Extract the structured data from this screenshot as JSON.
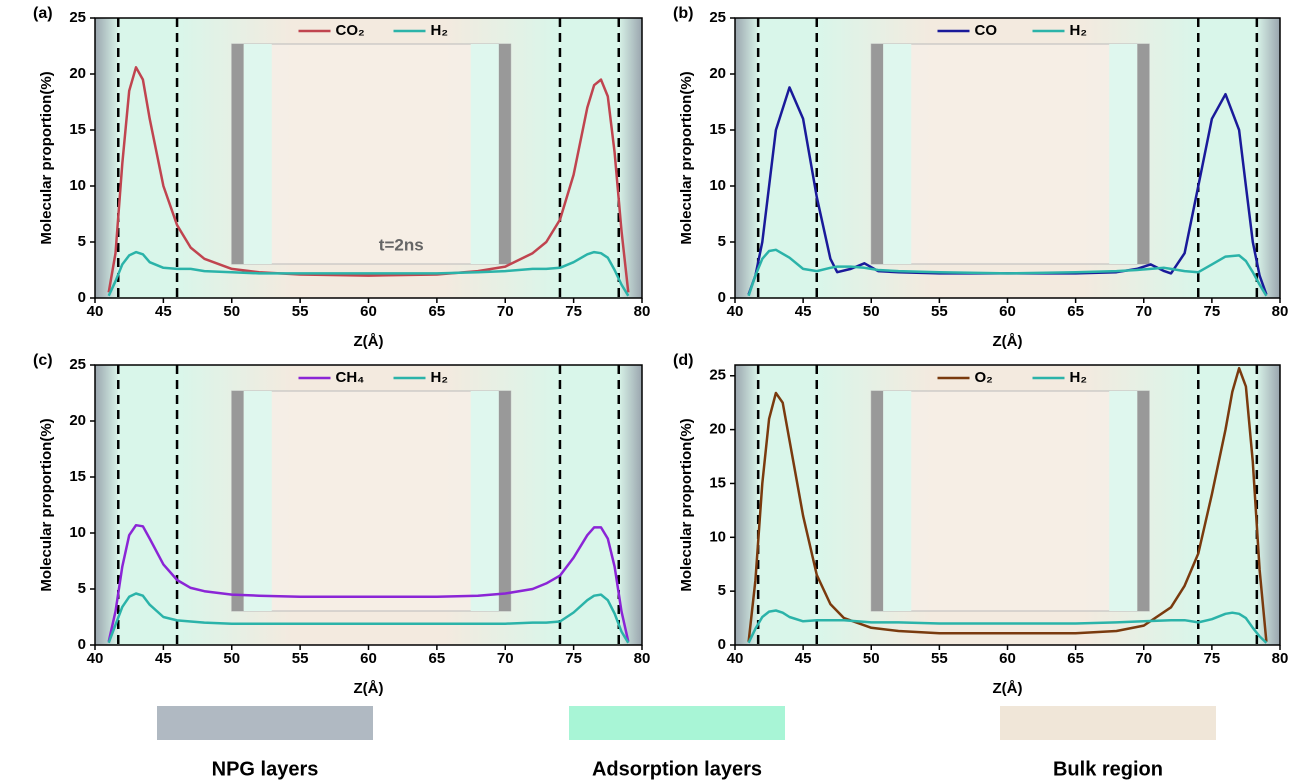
{
  "chart_data": [
    {
      "type": "line",
      "panel_label": "(a)",
      "x_label": "Z(Å)",
      "y_label": "Molecular proportion(%)",
      "annotation": "t=2ns",
      "x": [
        41,
        41.5,
        42,
        42.5,
        43,
        43.5,
        44,
        45,
        46,
        47,
        48,
        50,
        52,
        55,
        60,
        65,
        68,
        70,
        72,
        73,
        74,
        75,
        76,
        76.5,
        77,
        77.5,
        78,
        78.5,
        79
      ],
      "series": [
        {
          "name": "CO₂",
          "color": "#c0444f",
          "values": [
            0.5,
            4,
            12,
            18.5,
            20.6,
            19.5,
            16,
            10,
            6.5,
            4.5,
            3.5,
            2.6,
            2.3,
            2.1,
            2.0,
            2.1,
            2.4,
            2.8,
            4,
            5,
            7,
            11,
            17,
            19,
            19.5,
            18,
            13,
            6,
            0.5
          ]
        },
        {
          "name": "H₂",
          "color": "#2bb3a9",
          "values": [
            0.2,
            1.5,
            3,
            3.8,
            4.1,
            3.9,
            3.2,
            2.7,
            2.6,
            2.6,
            2.4,
            2.3,
            2.2,
            2.2,
            2.2,
            2.2,
            2.3,
            2.4,
            2.6,
            2.6,
            2.7,
            3.2,
            3.9,
            4.1,
            4.0,
            3.6,
            2.5,
            1.2,
            0.2
          ]
        }
      ],
      "boundaries": [
        41.7,
        46,
        74,
        78.3
      ],
      "xlim": [
        40,
        80
      ],
      "xticks": [
        40,
        45,
        50,
        55,
        60,
        65,
        70,
        75,
        80
      ],
      "ylim": [
        0,
        25
      ],
      "yticks": [
        0,
        5,
        10,
        15,
        20,
        25
      ]
    },
    {
      "type": "line",
      "panel_label": "(b)",
      "x_label": "Z(Å)",
      "y_label": "Molecular proportion(%)",
      "x": [
        41,
        41.5,
        42,
        42.5,
        43,
        44,
        45,
        46,
        47,
        47.5,
        48.5,
        49.5,
        50.5,
        52,
        55,
        60,
        65,
        68,
        69.5,
        70.5,
        71.5,
        72,
        73,
        74,
        75,
        76,
        77,
        77.5,
        78,
        78.5,
        79
      ],
      "series": [
        {
          "name": "CO",
          "color": "#1a1a9a",
          "values": [
            0.3,
            2,
            5,
            10,
            15,
            18.8,
            16,
            9,
            3.5,
            2.3,
            2.6,
            3.1,
            2.4,
            2.3,
            2.2,
            2.2,
            2.2,
            2.3,
            2.6,
            3.0,
            2.4,
            2.2,
            4,
            10,
            16,
            18.2,
            15,
            10,
            5,
            2,
            0.3
          ]
        },
        {
          "name": "H₂",
          "color": "#2bb3a9",
          "values": [
            0.2,
            2,
            3.5,
            4.2,
            4.3,
            3.6,
            2.6,
            2.4,
            2.7,
            2.8,
            2.8,
            2.7,
            2.5,
            2.4,
            2.3,
            2.2,
            2.3,
            2.4,
            2.5,
            2.6,
            2.7,
            2.6,
            2.4,
            2.3,
            3,
            3.7,
            3.8,
            3.3,
            2.3,
            1.2,
            0.2
          ]
        }
      ],
      "boundaries": [
        41.7,
        46,
        74,
        78.3
      ],
      "xlim": [
        40,
        80
      ],
      "xticks": [
        40,
        45,
        50,
        55,
        60,
        65,
        70,
        75,
        80
      ],
      "ylim": [
        0,
        25
      ],
      "yticks": [
        0,
        5,
        10,
        15,
        20,
        25
      ]
    },
    {
      "type": "line",
      "panel_label": "(c)",
      "x_label": "Z(Å)",
      "y_label": "Molecular proportion(%)",
      "x": [
        41,
        41.5,
        42,
        42.5,
        43,
        43.5,
        44,
        45,
        46,
        47,
        48,
        50,
        52,
        55,
        60,
        65,
        68,
        70,
        72,
        73,
        74,
        75,
        76,
        76.5,
        77,
        77.5,
        78,
        78.5,
        79
      ],
      "series": [
        {
          "name": "CH₄",
          "color": "#8b25d6",
          "values": [
            0.3,
            3,
            7,
            9.8,
            10.7,
            10.6,
            9.5,
            7.2,
            5.8,
            5.1,
            4.8,
            4.5,
            4.4,
            4.3,
            4.3,
            4.3,
            4.4,
            4.6,
            5.0,
            5.5,
            6.2,
            7.8,
            9.8,
            10.5,
            10.5,
            9.5,
            7,
            3,
            0.3
          ]
        },
        {
          "name": "H₂",
          "color": "#2bb3a9",
          "values": [
            0.2,
            1.8,
            3.4,
            4.3,
            4.6,
            4.4,
            3.6,
            2.5,
            2.2,
            2.1,
            2.0,
            1.9,
            1.9,
            1.9,
            1.9,
            1.9,
            1.9,
            1.9,
            2.0,
            2.0,
            2.1,
            2.9,
            4.0,
            4.4,
            4.5,
            4.0,
            2.8,
            1.2,
            0.2
          ]
        }
      ],
      "boundaries": [
        41.7,
        46,
        74,
        78.3
      ],
      "xlim": [
        40,
        80
      ],
      "xticks": [
        40,
        45,
        50,
        55,
        60,
        65,
        70,
        75,
        80
      ],
      "ylim": [
        0,
        25
      ],
      "yticks": [
        0,
        5,
        10,
        15,
        20,
        25
      ]
    },
    {
      "type": "line",
      "panel_label": "(d)",
      "x_label": "Z(Å)",
      "y_label": "Molecular proportion(%)",
      "x": [
        41,
        41.5,
        42,
        42.5,
        43,
        43.5,
        44,
        45,
        46,
        47,
        48,
        50,
        52,
        55,
        60,
        65,
        68,
        70,
        72,
        73,
        74,
        75,
        76,
        76.5,
        77,
        77.5,
        78,
        78.5,
        79
      ],
      "series": [
        {
          "name": "O₂",
          "color": "#7a3a0e",
          "values": [
            0.3,
            6,
            15,
            21,
            23.4,
            22.5,
            19,
            12,
            6.5,
            3.8,
            2.5,
            1.6,
            1.3,
            1.1,
            1.1,
            1.1,
            1.3,
            1.8,
            3.5,
            5.5,
            8.5,
            14,
            20,
            23.5,
            25.7,
            24,
            17,
            7,
            0.3
          ]
        },
        {
          "name": "H₂",
          "color": "#2bb3a9",
          "values": [
            0.2,
            1.5,
            2.6,
            3.1,
            3.2,
            3.0,
            2.6,
            2.2,
            2.3,
            2.3,
            2.3,
            2.1,
            2.1,
            2.0,
            2.0,
            2.0,
            2.1,
            2.2,
            2.3,
            2.3,
            2.1,
            2.4,
            2.9,
            3.0,
            2.9,
            2.5,
            1.6,
            0.8,
            0.2
          ]
        }
      ],
      "boundaries": [
        41.7,
        46,
        74,
        78.3
      ],
      "xlim": [
        40,
        80
      ],
      "xticks": [
        40,
        45,
        50,
        55,
        60,
        65,
        70,
        75,
        80
      ],
      "ylim": [
        0,
        26
      ],
      "yticks": [
        0,
        5,
        10,
        15,
        20,
        25
      ]
    }
  ],
  "region_legend": [
    {
      "name": "NPG layers",
      "color": "#b0b9c2"
    },
    {
      "name": "Adsorption layers",
      "color": "#a8f5d6"
    },
    {
      "name": "Bulk region",
      "color": "#f0e6d8"
    }
  ]
}
